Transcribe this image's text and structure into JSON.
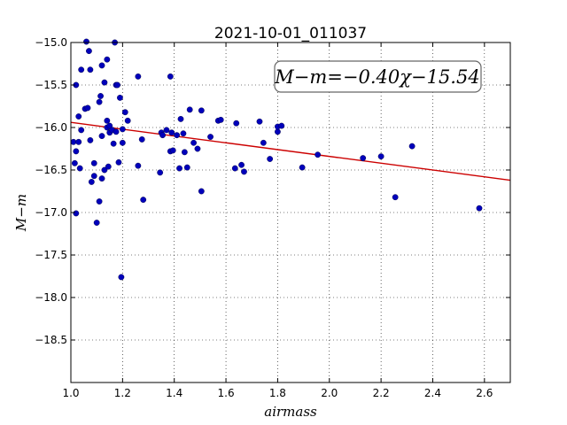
{
  "chart_data": {
    "type": "scatter",
    "title": "2021-10-01_011037",
    "xlabel": "airmass",
    "ylabel": "M−m",
    "xlim": [
      1.0,
      2.7
    ],
    "ylim": [
      -19.0,
      -15.0
    ],
    "y_inverted": true,
    "grid": true,
    "grid_style": "dotted",
    "xticks": [
      1.0,
      1.2,
      1.4,
      1.6,
      1.8,
      2.0,
      2.2,
      2.4,
      2.6
    ],
    "xtick_labels": [
      "1.0",
      "1.2",
      "1.4",
      "1.6",
      "1.8",
      "2.0",
      "2.2",
      "2.4",
      "2.6"
    ],
    "yticks": [
      -15.0,
      -15.5,
      -16.0,
      -16.5,
      -17.0,
      -17.5,
      -18.0,
      -18.5
    ],
    "ytick_labels": [
      "−15.0",
      "−15.5",
      "−16.0",
      "−16.5",
      "−17.0",
      "−17.5",
      "−18.0",
      "−18.5"
    ],
    "annotation": "M−m=−0.40χ−15.54",
    "annotation_position": "top-right",
    "fit": {
      "slope": -0.4,
      "intercept": -15.54,
      "color": "#cc0000"
    },
    "point_color": "#0000bb",
    "points": [
      [
        1.01,
        -16.17
      ],
      [
        1.015,
        -16.42
      ],
      [
        1.02,
        -15.5
      ],
      [
        1.02,
        -16.28
      ],
      [
        1.02,
        -17.01
      ],
      [
        1.03,
        -16.17
      ],
      [
        1.03,
        -15.87
      ],
      [
        1.035,
        -16.48
      ],
      [
        1.04,
        -15.32
      ],
      [
        1.04,
        -16.03
      ],
      [
        1.055,
        -15.78
      ],
      [
        1.06,
        -14.99
      ],
      [
        1.065,
        -15.77
      ],
      [
        1.07,
        -15.1
      ],
      [
        1.075,
        -16.15
      ],
      [
        1.075,
        -15.32
      ],
      [
        1.08,
        -16.64
      ],
      [
        1.09,
        -16.42
      ],
      [
        1.09,
        -16.57
      ],
      [
        1.1,
        -17.12
      ],
      [
        1.11,
        -16.87
      ],
      [
        1.11,
        -15.7
      ],
      [
        1.115,
        -15.63
      ],
      [
        1.12,
        -16.1
      ],
      [
        1.12,
        -16.6
      ],
      [
        1.12,
        -15.27
      ],
      [
        1.13,
        -16.5
      ],
      [
        1.13,
        -15.47
      ],
      [
        1.14,
        -16.0
      ],
      [
        1.14,
        -15.92
      ],
      [
        1.14,
        -15.2
      ],
      [
        1.145,
        -16.46
      ],
      [
        1.15,
        -16.06
      ],
      [
        1.15,
        -15.98
      ],
      [
        1.16,
        -16.03
      ],
      [
        1.165,
        -16.19
      ],
      [
        1.17,
        -15.0
      ],
      [
        1.175,
        -15.5
      ],
      [
        1.175,
        -16.05
      ],
      [
        1.18,
        -15.5
      ],
      [
        1.185,
        -16.41
      ],
      [
        1.19,
        -15.65
      ],
      [
        1.195,
        -17.76
      ],
      [
        1.2,
        -16.18
      ],
      [
        1.2,
        -16.02
      ],
      [
        1.21,
        -15.82
      ],
      [
        1.22,
        -15.92
      ],
      [
        1.26,
        -15.4
      ],
      [
        1.26,
        -16.45
      ],
      [
        1.275,
        -16.14
      ],
      [
        1.28,
        -16.85
      ],
      [
        1.345,
        -16.53
      ],
      [
        1.35,
        -16.06
      ],
      [
        1.355,
        -16.09
      ],
      [
        1.37,
        -16.03
      ],
      [
        1.385,
        -16.28
      ],
      [
        1.385,
        -15.4
      ],
      [
        1.39,
        -16.06
      ],
      [
        1.395,
        -16.27
      ],
      [
        1.41,
        -16.09
      ],
      [
        1.42,
        -16.48
      ],
      [
        1.425,
        -15.9
      ],
      [
        1.435,
        -16.07
      ],
      [
        1.44,
        -16.29
      ],
      [
        1.45,
        -16.47
      ],
      [
        1.46,
        -15.79
      ],
      [
        1.475,
        -16.18
      ],
      [
        1.49,
        -16.25
      ],
      [
        1.505,
        -15.8
      ],
      [
        1.505,
        -16.75
      ],
      [
        1.54,
        -16.11
      ],
      [
        1.57,
        -15.92
      ],
      [
        1.58,
        -15.91
      ],
      [
        1.635,
        -16.48
      ],
      [
        1.64,
        -15.95
      ],
      [
        1.66,
        -16.44
      ],
      [
        1.67,
        -16.52
      ],
      [
        1.73,
        -15.93
      ],
      [
        1.745,
        -16.18
      ],
      [
        1.77,
        -16.37
      ],
      [
        1.8,
        -16.05
      ],
      [
        1.8,
        -15.99
      ],
      [
        1.815,
        -15.98
      ],
      [
        1.895,
        -16.47
      ],
      [
        1.955,
        -16.32
      ],
      [
        2.13,
        -16.36
      ],
      [
        2.2,
        -16.34
      ],
      [
        2.255,
        -16.82
      ],
      [
        2.32,
        -16.22
      ],
      [
        2.58,
        -16.95
      ]
    ]
  }
}
